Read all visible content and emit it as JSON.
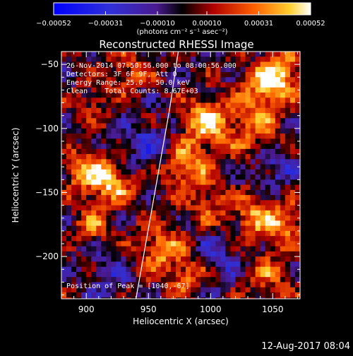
{
  "chart_data": {
    "type": "heatmap",
    "title": "Reconstructed RHESSI Image",
    "xlabel": "Heliocentric X (arcsec)",
    "ylabel": "Heliocentric Y (arcsec)",
    "xlim": [
      880,
      1072
    ],
    "ylim": [
      -233,
      -40
    ],
    "xticks": [
      900,
      950,
      1000,
      1050
    ],
    "yticks": [
      -50,
      -100,
      -150,
      -200
    ],
    "xtick_labels": [
      "900",
      "950",
      "1000",
      "1050"
    ],
    "ytick_labels": [
      "−50",
      "−100",
      "−150",
      "−200"
    ],
    "colorbar": {
      "range": [
        -0.00052,
        0.00052
      ],
      "ticks": [
        -0.00052,
        -0.00031,
        -0.0001,
        0.0001,
        0.00031,
        0.00052
      ],
      "tick_labels": [
        "−0.00052",
        "−0.00031",
        "−0.00010",
        "0.00010",
        "0.00031",
        "0.00052"
      ],
      "unit_label": "(photons cm⁻² s⁻¹ asec⁻²)"
    },
    "info_lines": [
      "26-Nov-2014 07:50:56.000 to 08:00:56.000",
      "Detectors: 3F 6F 9F, Att 0",
      "Energy Range: 25.0 - 50.0 keV",
      "Clean    Total Counts: 8.67E+03"
    ],
    "peak_label": "Position of Peak = [1040,-67]",
    "peak": [
      1040,
      -67
    ],
    "limb_points": [
      [
        940,
        -233
      ],
      [
        967,
        -85
      ],
      [
        974,
        -40
      ]
    ],
    "sources": [
      {
        "x": 997,
        "y": -95,
        "amp": 1.0,
        "w": 13
      },
      {
        "x": 980,
        "y": -130,
        "amp": 0.8,
        "w": 14
      },
      {
        "x": 1045,
        "y": -67,
        "amp": 0.95,
        "w": 12
      },
      {
        "x": 1035,
        "y": -100,
        "amp": 0.6,
        "w": 16
      },
      {
        "x": 1060,
        "y": -55,
        "amp": 0.7,
        "w": 12
      },
      {
        "x": 900,
        "y": -135,
        "amp": 0.85,
        "w": 12
      },
      {
        "x": 922,
        "y": -142,
        "amp": 0.9,
        "w": 11
      },
      {
        "x": 905,
        "y": -175,
        "amp": 0.6,
        "w": 10
      },
      {
        "x": 960,
        "y": -195,
        "amp": 0.75,
        "w": 14
      },
      {
        "x": 983,
        "y": -215,
        "amp": 0.65,
        "w": 10
      },
      {
        "x": 1035,
        "y": -170,
        "amp": 0.75,
        "w": 13
      },
      {
        "x": 1060,
        "y": -175,
        "amp": 0.75,
        "w": 10
      },
      {
        "x": 1045,
        "y": -215,
        "amp": 0.55,
        "w": 13
      },
      {
        "x": 935,
        "y": -55,
        "amp": 0.55,
        "w": 12
      },
      {
        "x": 905,
        "y": -80,
        "amp": 0.4,
        "w": 10
      },
      {
        "x": 1000,
        "y": -160,
        "amp": 0.5,
        "w": 12
      },
      {
        "x": 950,
        "y": -115,
        "amp": -0.5,
        "w": 14
      },
      {
        "x": 1010,
        "y": -200,
        "amp": -0.4,
        "w": 15
      },
      {
        "x": 920,
        "y": -215,
        "amp": -0.35,
        "w": 12
      },
      {
        "x": 1050,
        "y": -130,
        "amp": -0.45,
        "w": 12
      }
    ]
  },
  "footer": {
    "timestamp": "12-Aug-2017 08:04"
  }
}
